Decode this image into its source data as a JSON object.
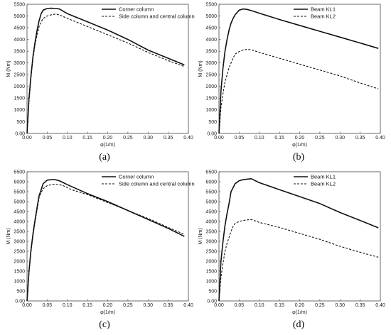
{
  "chart_data": [
    {
      "type": "line",
      "caption": "(a)",
      "xlabel": "φ(1/m)",
      "ylabel": "M (Nm)",
      "xlim": [
        0,
        0.4
      ],
      "ylim": [
        0,
        5500
      ],
      "xticks": [
        "0.00",
        "0.05",
        "0.10",
        "0.15",
        "0.20",
        "0.25",
        "0.30",
        "0.35",
        "0.40"
      ],
      "yticks": [
        "0.00",
        "500",
        "1000",
        "1500",
        "2000",
        "2500",
        "3000",
        "3500",
        "4000",
        "4500",
        "5000",
        "5500"
      ],
      "grid": false,
      "legend": "top-right",
      "series": [
        {
          "name": "Corner column",
          "style": "solid",
          "x": [
            0,
            0.005,
            0.01,
            0.015,
            0.02,
            0.025,
            0.03,
            0.035,
            0.04,
            0.05,
            0.06,
            0.07,
            0.08,
            0.09,
            0.1,
            0.15,
            0.2,
            0.25,
            0.3,
            0.35,
            0.39
          ],
          "y": [
            0,
            1500,
            2500,
            3300,
            3900,
            4400,
            4800,
            5100,
            5250,
            5320,
            5330,
            5320,
            5300,
            5200,
            5100,
            4750,
            4400,
            4000,
            3550,
            3200,
            2920
          ]
        },
        {
          "name": "Side column and central column",
          "style": "dashed",
          "x": [
            0,
            0.005,
            0.01,
            0.015,
            0.02,
            0.025,
            0.03,
            0.035,
            0.04,
            0.05,
            0.06,
            0.07,
            0.08,
            0.1,
            0.15,
            0.2,
            0.25,
            0.3,
            0.35,
            0.39
          ],
          "y": [
            0,
            1400,
            2400,
            3200,
            3800,
            4200,
            4550,
            4750,
            4900,
            5000,
            5050,
            5080,
            5050,
            4900,
            4550,
            4200,
            3850,
            3450,
            3100,
            2850
          ]
        }
      ]
    },
    {
      "type": "line",
      "caption": "(b)",
      "xlabel": "φ(1/m)",
      "ylabel": "M (Nm)",
      "xlim": [
        0,
        0.4
      ],
      "ylim": [
        0,
        5500
      ],
      "xticks": [
        "0.00",
        "0.05",
        "0.10",
        "0.15",
        "0.20",
        "0.25",
        "0.30",
        "0.35",
        "0.40"
      ],
      "yticks": [
        "0.00",
        "500",
        "1000",
        "1500",
        "2000",
        "2500",
        "3000",
        "3500",
        "4000",
        "4500",
        "5000",
        "5500"
      ],
      "grid": false,
      "legend": "top-right",
      "series": [
        {
          "name": "Beam KL1",
          "style": "solid",
          "x": [
            0,
            0.005,
            0.01,
            0.015,
            0.02,
            0.025,
            0.03,
            0.035,
            0.04,
            0.05,
            0.06,
            0.07,
            0.08,
            0.1,
            0.15,
            0.2,
            0.25,
            0.3,
            0.35,
            0.395
          ],
          "y": [
            0,
            1800,
            2800,
            3500,
            4000,
            4400,
            4700,
            4900,
            5050,
            5250,
            5300,
            5280,
            5230,
            5120,
            4850,
            4600,
            4350,
            4100,
            3850,
            3620
          ]
        },
        {
          "name": "Beam KL2",
          "style": "dashed",
          "x": [
            0,
            0.005,
            0.01,
            0.015,
            0.02,
            0.025,
            0.03,
            0.035,
            0.04,
            0.05,
            0.06,
            0.07,
            0.08,
            0.1,
            0.15,
            0.2,
            0.25,
            0.3,
            0.35,
            0.395
          ],
          "y": [
            0,
            1100,
            1700,
            2200,
            2500,
            2800,
            3000,
            3200,
            3380,
            3480,
            3550,
            3580,
            3560,
            3450,
            3200,
            2950,
            2700,
            2450,
            2150,
            1900
          ]
        }
      ]
    },
    {
      "type": "line",
      "caption": "(c)",
      "xlabel": "φ(1/m)",
      "ylabel": "M (Nm)",
      "xlim": [
        0,
        0.4
      ],
      "ylim": [
        0,
        6500
      ],
      "xticks": [
        "0.00",
        "0.05",
        "0.10",
        "0.15",
        "0.20",
        "0.25",
        "0.30",
        "0.35",
        "0.40"
      ],
      "yticks": [
        "0.00",
        "500",
        "1000",
        "1500",
        "2000",
        "2500",
        "3000",
        "3500",
        "4000",
        "4500",
        "5000",
        "5500",
        "6000",
        "6500"
      ],
      "grid": false,
      "legend": "top-right",
      "series": [
        {
          "name": "Corner column",
          "style": "solid",
          "x": [
            0,
            0.005,
            0.01,
            0.015,
            0.02,
            0.025,
            0.03,
            0.035,
            0.04,
            0.05,
            0.06,
            0.07,
            0.08,
            0.09,
            0.1,
            0.15,
            0.2,
            0.25,
            0.3,
            0.35,
            0.39
          ],
          "y": [
            0,
            1500,
            2600,
            3400,
            4100,
            4700,
            5300,
            5600,
            5900,
            6080,
            6100,
            6100,
            6050,
            5950,
            5850,
            5400,
            5000,
            4550,
            4100,
            3650,
            3250
          ]
        },
        {
          "name": "Side column and central column",
          "style": "dashed",
          "x": [
            0,
            0.005,
            0.01,
            0.015,
            0.02,
            0.025,
            0.03,
            0.035,
            0.04,
            0.05,
            0.06,
            0.07,
            0.08,
            0.09,
            0.1,
            0.11,
            0.15,
            0.2,
            0.25,
            0.3,
            0.35,
            0.39
          ],
          "y": [
            0,
            1400,
            2500,
            3300,
            4000,
            4600,
            5200,
            5450,
            5650,
            5800,
            5850,
            5870,
            5850,
            5800,
            5700,
            5600,
            5350,
            4950,
            4550,
            4150,
            3700,
            3350
          ]
        }
      ]
    },
    {
      "type": "line",
      "caption": "(d)",
      "xlabel": "φ(1/m)",
      "ylabel": "M (Nm)",
      "xlim": [
        0,
        0.4
      ],
      "ylim": [
        0,
        6500
      ],
      "xticks": [
        "0.00",
        "0.05",
        "0.10",
        "0.15",
        "0.20",
        "0.25",
        "0.30",
        "0.35",
        "0.40"
      ],
      "yticks": [
        "0.00",
        "500",
        "1000",
        "1500",
        "2000",
        "2500",
        "3000",
        "3500",
        "4000",
        "4500",
        "5000",
        "5500",
        "6000",
        "6500"
      ],
      "grid": false,
      "legend": "top-right",
      "series": [
        {
          "name": "Beam KL1",
          "style": "solid",
          "x": [
            0,
            0.005,
            0.01,
            0.015,
            0.02,
            0.025,
            0.03,
            0.035,
            0.04,
            0.05,
            0.06,
            0.07,
            0.08,
            0.1,
            0.15,
            0.2,
            0.25,
            0.3,
            0.35,
            0.395
          ],
          "y": [
            0,
            2000,
            3000,
            3800,
            4400,
            4900,
            5500,
            5700,
            5900,
            6050,
            6100,
            6130,
            6150,
            5950,
            5600,
            5250,
            4900,
            4450,
            4050,
            3680
          ]
        },
        {
          "name": "Beam KL2",
          "style": "dashed",
          "x": [
            0,
            0.005,
            0.01,
            0.015,
            0.02,
            0.025,
            0.03,
            0.035,
            0.04,
            0.05,
            0.06,
            0.07,
            0.08,
            0.1,
            0.15,
            0.2,
            0.25,
            0.3,
            0.35,
            0.395
          ],
          "y": [
            0,
            1200,
            1900,
            2500,
            2900,
            3200,
            3500,
            3750,
            3900,
            4000,
            4050,
            4080,
            4100,
            3950,
            3700,
            3400,
            3100,
            2750,
            2450,
            2200
          ]
        }
      ]
    }
  ]
}
